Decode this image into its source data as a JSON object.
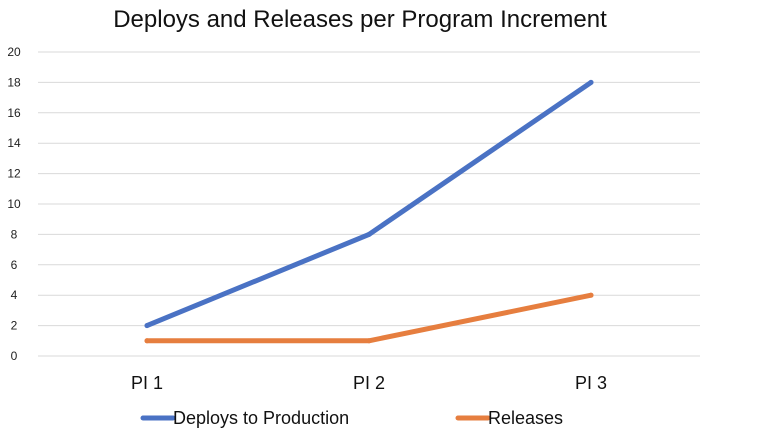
{
  "chart_data": {
    "type": "line",
    "title": "Deploys and Releases per Program Increment",
    "xlabel": "",
    "ylabel": "",
    "categories": [
      "PI 1",
      "PI 2",
      "PI 3"
    ],
    "ylim": [
      0,
      20
    ],
    "yticks": [
      0,
      2,
      4,
      6,
      8,
      10,
      12,
      14,
      16,
      18,
      20
    ],
    "grid": true,
    "legend_position": "bottom",
    "series": [
      {
        "name": "Deploys to Production",
        "values": [
          2,
          8,
          18
        ],
        "color": "#4a72c4"
      },
      {
        "name": "Releases",
        "values": [
          1,
          1,
          4
        ],
        "color": "#e67e3f"
      }
    ]
  },
  "colors": {
    "gridline": "#d9d9d9",
    "background": "#ffffff"
  }
}
